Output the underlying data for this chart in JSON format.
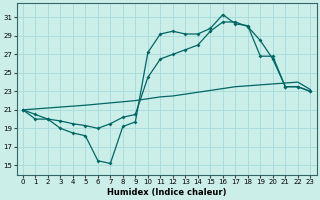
{
  "title": "",
  "xlabel": "Humidex (Indice chaleur)",
  "background_color": "#cceee8",
  "grid_color": "#aadddd",
  "line_color": "#006666",
  "xlim": [
    -0.5,
    23.5
  ],
  "ylim": [
    14,
    32.5
  ],
  "yticks": [
    15,
    17,
    19,
    21,
    23,
    25,
    27,
    29,
    31
  ],
  "xticks": [
    0,
    1,
    2,
    3,
    4,
    5,
    6,
    7,
    8,
    9,
    10,
    11,
    12,
    13,
    14,
    15,
    16,
    17,
    18,
    19,
    20,
    21,
    22,
    23
  ],
  "line1_x": [
    0,
    1,
    2,
    3,
    4,
    5,
    6,
    7,
    8,
    9,
    10,
    11,
    12,
    13,
    14,
    15,
    16,
    17,
    18,
    19,
    20,
    21,
    22,
    23
  ],
  "line1_y": [
    21.0,
    20.5,
    20.0,
    19.0,
    18.5,
    18.2,
    15.5,
    15.2,
    19.2,
    19.7,
    27.2,
    29.2,
    29.5,
    29.2,
    29.2,
    29.8,
    31.3,
    30.3,
    30.1,
    26.8,
    26.8,
    23.5,
    23.5,
    23.0
  ],
  "line2_x": [
    0,
    1,
    2,
    3,
    4,
    5,
    6,
    7,
    8,
    9,
    10,
    11,
    12,
    13,
    14,
    15,
    16,
    17,
    18,
    19,
    20,
    21,
    22,
    23
  ],
  "line2_y": [
    21.0,
    20.0,
    20.0,
    19.8,
    19.5,
    19.3,
    19.0,
    19.5,
    20.2,
    20.5,
    24.5,
    26.5,
    27.0,
    27.5,
    28.0,
    29.5,
    30.5,
    30.5,
    30.0,
    28.5,
    26.5,
    23.5,
    23.5,
    23.0
  ],
  "line3_x": [
    0,
    5,
    9,
    10,
    11,
    12,
    13,
    14,
    15,
    16,
    17,
    18,
    19,
    20,
    21,
    22,
    23
  ],
  "line3_y": [
    21.0,
    21.5,
    22.0,
    22.2,
    22.4,
    22.5,
    22.7,
    22.9,
    23.1,
    23.3,
    23.5,
    23.6,
    23.7,
    23.8,
    23.9,
    24.0,
    23.2
  ]
}
